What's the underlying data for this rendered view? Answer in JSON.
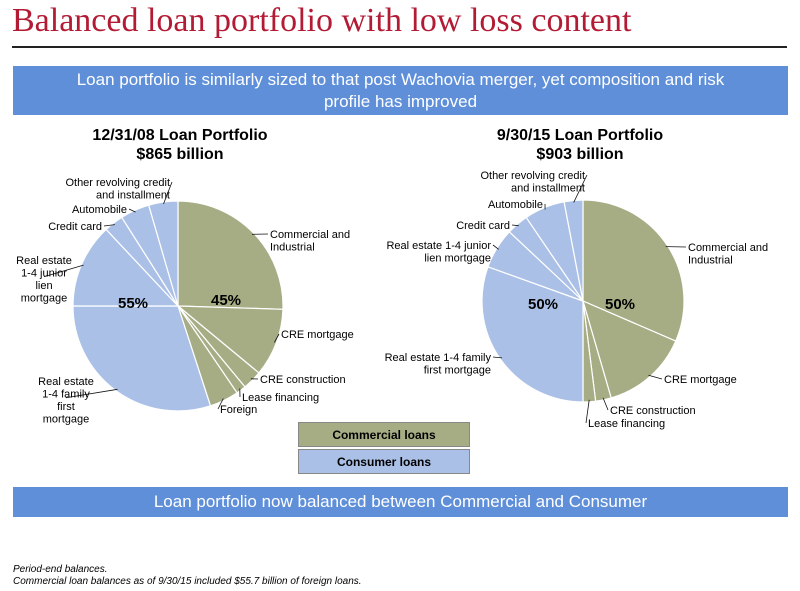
{
  "title": "Balanced loan portfolio with low loss content",
  "banner_top": "Loan portfolio is similarly sized to that post Wachovia merger, yet composition and risk profile has improved",
  "banner_bottom": "Loan portfolio now balanced between Commercial and Consumer",
  "legend": {
    "commercial": "Commercial loans",
    "consumer": "Consumer loans"
  },
  "footnotes": [
    "Period-end balances.",
    "Commercial loan balances as of 9/30/15 included $55.7 billion of foreign loans."
  ],
  "colors": {
    "commercial": "#a6ad85",
    "consumer": "#aac0e6",
    "title": "#b31b34",
    "banner": "#5f8fd9"
  },
  "chart_data": [
    {
      "type": "pie",
      "title": "12/31/08 Loan Portfolio",
      "subtitle": "$865 billion",
      "group_labels": {
        "commercial": "45%",
        "consumer": "55%"
      },
      "slices": [
        {
          "label": "Commercial and Industrial",
          "group": "commercial",
          "value": 25.5
        },
        {
          "label": "CRE mortgage",
          "group": "commercial",
          "value": 10.5
        },
        {
          "label": "CRE construction",
          "group": "commercial",
          "value": 3.0
        },
        {
          "label": "Lease financing",
          "group": "commercial",
          "value": 1.5
        },
        {
          "label": "Foreign",
          "group": "commercial",
          "value": 4.5
        },
        {
          "label": "Real estate 1-4 family first mortgage",
          "group": "consumer",
          "value": 30.0
        },
        {
          "label": "Real estate 1-4 junior lien mortgage",
          "group": "consumer",
          "value": 13.0
        },
        {
          "label": "Credit card",
          "group": "consumer",
          "value": 3.0
        },
        {
          "label": "Automobile",
          "group": "consumer",
          "value": 4.5
        },
        {
          "label": "Other revolving credit and installment",
          "group": "consumer",
          "value": 4.5
        }
      ]
    },
    {
      "type": "pie",
      "title": "9/30/15 Loan Portfolio",
      "subtitle": "$903 billion",
      "group_labels": {
        "commercial": "50%",
        "consumer": "50%"
      },
      "slices": [
        {
          "label": "Commercial and Industrial",
          "group": "commercial",
          "value": 31.5
        },
        {
          "label": "CRE mortgage",
          "group": "commercial",
          "value": 14.0
        },
        {
          "label": "CRE construction",
          "group": "commercial",
          "value": 2.5
        },
        {
          "label": "Lease financing",
          "group": "commercial",
          "value": 2.0
        },
        {
          "label": "Real estate 1-4 family first mortgage",
          "group": "consumer",
          "value": 30.5
        },
        {
          "label": "Real estate 1-4 junior lien mortgage",
          "group": "consumer",
          "value": 6.5
        },
        {
          "label": "Credit card",
          "group": "consumer",
          "value": 3.5
        },
        {
          "label": "Automobile",
          "group": "consumer",
          "value": 6.5
        },
        {
          "label": "Other revolving credit and installment",
          "group": "consumer",
          "value": 3.0
        }
      ]
    }
  ]
}
